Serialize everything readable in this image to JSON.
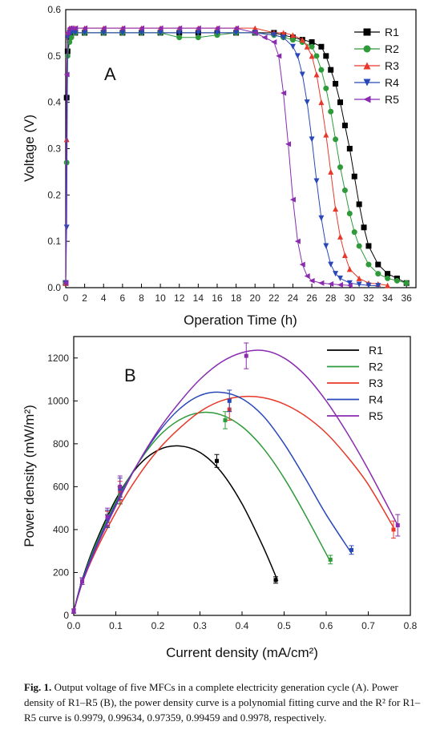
{
  "chart_data": [
    {
      "type": "scatter",
      "panel_label": "A",
      "xlabel": "Operation Time (h)",
      "ylabel": "Voltage (V)",
      "xlim": [
        0,
        37
      ],
      "ylim": [
        0,
        0.6
      ],
      "xticks": [
        "0",
        "2",
        "4",
        "6",
        "8",
        "10",
        "12",
        "14",
        "16",
        "18",
        "20",
        "22",
        "24",
        "26",
        "28",
        "30",
        "32",
        "34",
        "36"
      ],
      "yticks": [
        "0.0",
        "0.1",
        "0.2",
        "0.3",
        "0.4",
        "0.5",
        "0.6"
      ],
      "legend_position": "top-right",
      "series": [
        {
          "name": "R1",
          "color": "#000000",
          "marker": "square",
          "x": [
            0,
            0.1,
            0.2,
            0.4,
            0.6,
            1,
            2,
            4,
            6,
            8,
            10,
            12,
            14,
            16,
            18,
            20,
            22,
            23,
            24,
            25,
            26,
            27,
            27.5,
            28,
            28.5,
            29,
            29.5,
            30,
            30.5,
            31,
            31.5,
            32,
            33,
            34,
            35,
            36
          ],
          "y": [
            0.01,
            0.41,
            0.51,
            0.54,
            0.55,
            0.55,
            0.55,
            0.55,
            0.55,
            0.55,
            0.55,
            0.55,
            0.55,
            0.55,
            0.55,
            0.55,
            0.55,
            0.545,
            0.54,
            0.535,
            0.53,
            0.52,
            0.5,
            0.47,
            0.44,
            0.4,
            0.35,
            0.3,
            0.24,
            0.18,
            0.13,
            0.09,
            0.05,
            0.03,
            0.02,
            0.01
          ]
        },
        {
          "name": "R2",
          "color": "#2e9a3a",
          "marker": "circle",
          "x": [
            0,
            0.1,
            0.2,
            0.4,
            0.6,
            1,
            2,
            4,
            6,
            8,
            10,
            12,
            14,
            16,
            18,
            20,
            22,
            23,
            24,
            25,
            26,
            26.5,
            27,
            27.5,
            28,
            28.5,
            29,
            29.5,
            30,
            30.5,
            31,
            32,
            33,
            34,
            35,
            36
          ],
          "y": [
            0.01,
            0.27,
            0.5,
            0.53,
            0.54,
            0.55,
            0.55,
            0.55,
            0.55,
            0.55,
            0.55,
            0.54,
            0.54,
            0.545,
            0.55,
            0.55,
            0.545,
            0.54,
            0.535,
            0.53,
            0.52,
            0.5,
            0.47,
            0.43,
            0.38,
            0.32,
            0.26,
            0.21,
            0.16,
            0.12,
            0.09,
            0.05,
            0.03,
            0.02,
            0.015,
            0.01
          ]
        },
        {
          "name": "R3",
          "color": "#e8382a",
          "marker": "triangle-up",
          "x": [
            0,
            0.1,
            0.2,
            0.4,
            0.6,
            1,
            2,
            4,
            6,
            8,
            10,
            12,
            14,
            16,
            18,
            20,
            22,
            23,
            24,
            25,
            25.5,
            26,
            26.5,
            27,
            27.5,
            28,
            28.5,
            29,
            29.5,
            30,
            31,
            32,
            33,
            34
          ],
          "y": [
            0.01,
            0.32,
            0.55,
            0.56,
            0.56,
            0.56,
            0.56,
            0.56,
            0.56,
            0.56,
            0.56,
            0.56,
            0.56,
            0.56,
            0.56,
            0.56,
            0.55,
            0.55,
            0.545,
            0.535,
            0.52,
            0.5,
            0.46,
            0.4,
            0.33,
            0.25,
            0.17,
            0.11,
            0.07,
            0.04,
            0.02,
            0.01,
            0.008,
            0.005
          ]
        },
        {
          "name": "R4",
          "color": "#2848b8",
          "marker": "triangle-down",
          "x": [
            0,
            0.1,
            0.2,
            0.4,
            0.6,
            1,
            2,
            4,
            6,
            8,
            10,
            12,
            14,
            16,
            18,
            20,
            22,
            23,
            24,
            24.5,
            25,
            25.5,
            26,
            26.5,
            27,
            27.5,
            28,
            28.5,
            29,
            30,
            31,
            32,
            33
          ],
          "y": [
            0.01,
            0.13,
            0.54,
            0.55,
            0.55,
            0.55,
            0.55,
            0.55,
            0.55,
            0.55,
            0.55,
            0.55,
            0.55,
            0.55,
            0.55,
            0.55,
            0.545,
            0.54,
            0.52,
            0.5,
            0.46,
            0.4,
            0.32,
            0.23,
            0.15,
            0.09,
            0.05,
            0.03,
            0.02,
            0.01,
            0.007,
            0.005,
            0.004
          ]
        },
        {
          "name": "R5",
          "color": "#8a2bb0",
          "marker": "triangle-left",
          "x": [
            0,
            0.1,
            0.2,
            0.4,
            0.6,
            1,
            2,
            4,
            6,
            8,
            10,
            12,
            14,
            16,
            18,
            20,
            21,
            22,
            22.5,
            23,
            23.5,
            24,
            24.5,
            25,
            25.5,
            26,
            27,
            28,
            29,
            30
          ],
          "y": [
            0.01,
            0.46,
            0.55,
            0.56,
            0.56,
            0.56,
            0.56,
            0.56,
            0.56,
            0.56,
            0.56,
            0.56,
            0.56,
            0.56,
            0.56,
            0.55,
            0.54,
            0.53,
            0.5,
            0.42,
            0.31,
            0.19,
            0.1,
            0.05,
            0.025,
            0.015,
            0.01,
            0.008,
            0.006,
            0.005
          ]
        }
      ]
    },
    {
      "type": "line",
      "panel_label": "B",
      "xlabel": "Current density (mA/cm²)",
      "ylabel": "Power density (mW/m²)",
      "xlim": [
        0,
        0.8
      ],
      "ylim": [
        0,
        1300
      ],
      "xticks": [
        "0.0",
        "0.1",
        "0.2",
        "0.3",
        "0.4",
        "0.5",
        "0.6",
        "0.7",
        "0.8"
      ],
      "yticks": [
        "0",
        "200",
        "400",
        "600",
        "800",
        "1000",
        "1200"
      ],
      "legend_position": "top-right",
      "series": [
        {
          "name": "R1",
          "color": "#000000",
          "points_x": [
            0,
            0.02,
            0.08,
            0.11,
            0.34,
            0.48
          ],
          "points_y": [
            20,
            160,
            440,
            560,
            720,
            165
          ],
          "err": [
            10,
            15,
            30,
            40,
            30,
            15
          ],
          "fit_x": [
            0,
            0.02,
            0.05,
            0.1,
            0.15,
            0.2,
            0.25,
            0.3,
            0.35,
            0.4,
            0.45,
            0.485
          ],
          "fit_y": [
            20,
            165,
            330,
            540,
            690,
            770,
            790,
            760,
            670,
            520,
            320,
            160
          ]
        },
        {
          "name": "R2",
          "color": "#2e9a3a",
          "points_x": [
            0,
            0.02,
            0.08,
            0.11,
            0.36,
            0.61
          ],
          "points_y": [
            20,
            160,
            440,
            560,
            910,
            260
          ],
          "err": [
            10,
            15,
            30,
            40,
            40,
            20
          ],
          "fit_x": [
            0,
            0.02,
            0.05,
            0.1,
            0.15,
            0.2,
            0.25,
            0.3,
            0.35,
            0.4,
            0.45,
            0.5,
            0.55,
            0.61
          ],
          "fit_y": [
            20,
            160,
            320,
            530,
            700,
            830,
            910,
            945,
            935,
            880,
            780,
            640,
            470,
            250
          ]
        },
        {
          "name": "R3",
          "color": "#e8382a",
          "points_x": [
            0,
            0.02,
            0.08,
            0.11,
            0.37,
            0.76
          ],
          "points_y": [
            20,
            160,
            450,
            580,
            960,
            400
          ],
          "err": [
            10,
            15,
            35,
            45,
            50,
            40
          ],
          "fit_x": [
            0,
            0.02,
            0.05,
            0.1,
            0.15,
            0.2,
            0.25,
            0.3,
            0.35,
            0.4,
            0.45,
            0.5,
            0.55,
            0.6,
            0.65,
            0.7,
            0.76
          ],
          "fit_y": [
            20,
            150,
            290,
            480,
            640,
            770,
            870,
            950,
            1000,
            1020,
            1015,
            985,
            930,
            850,
            740,
            610,
            410
          ]
        },
        {
          "name": "R4",
          "color": "#2848b8",
          "points_x": [
            0,
            0.02,
            0.08,
            0.11,
            0.37,
            0.66
          ],
          "points_y": [
            20,
            160,
            450,
            590,
            1000,
            305
          ],
          "err": [
            10,
            15,
            40,
            50,
            50,
            20
          ],
          "fit_x": [
            0,
            0.02,
            0.05,
            0.1,
            0.15,
            0.2,
            0.25,
            0.3,
            0.35,
            0.4,
            0.45,
            0.5,
            0.55,
            0.6,
            0.66
          ],
          "fit_y": [
            20,
            160,
            310,
            520,
            700,
            850,
            960,
            1025,
            1040,
            1010,
            930,
            800,
            640,
            470,
            290
          ]
        },
        {
          "name": "R5",
          "color": "#8a2bb0",
          "points_x": [
            0,
            0.02,
            0.08,
            0.11,
            0.41,
            0.77
          ],
          "points_y": [
            20,
            160,
            460,
            600,
            1210,
            420
          ],
          "err": [
            10,
            15,
            40,
            50,
            60,
            50
          ],
          "fit_x": [
            0,
            0.02,
            0.05,
            0.1,
            0.15,
            0.2,
            0.25,
            0.3,
            0.35,
            0.4,
            0.45,
            0.5,
            0.55,
            0.6,
            0.65,
            0.7,
            0.77
          ],
          "fit_y": [
            20,
            150,
            300,
            510,
            700,
            860,
            990,
            1100,
            1180,
            1225,
            1235,
            1200,
            1120,
            1000,
            850,
            680,
            420
          ]
        }
      ]
    }
  ],
  "caption": {
    "label": "Fig. 1.",
    "text": "Output voltage of five MFCs in a complete electricity generation cycle (A). Power density of R1–R5 (B), the power density curve is a polynomial fitting curve and the R² for R1–R5 curve is 0.9979, 0.99634, 0.97359, 0.99459 and 0.9978, respectively."
  }
}
